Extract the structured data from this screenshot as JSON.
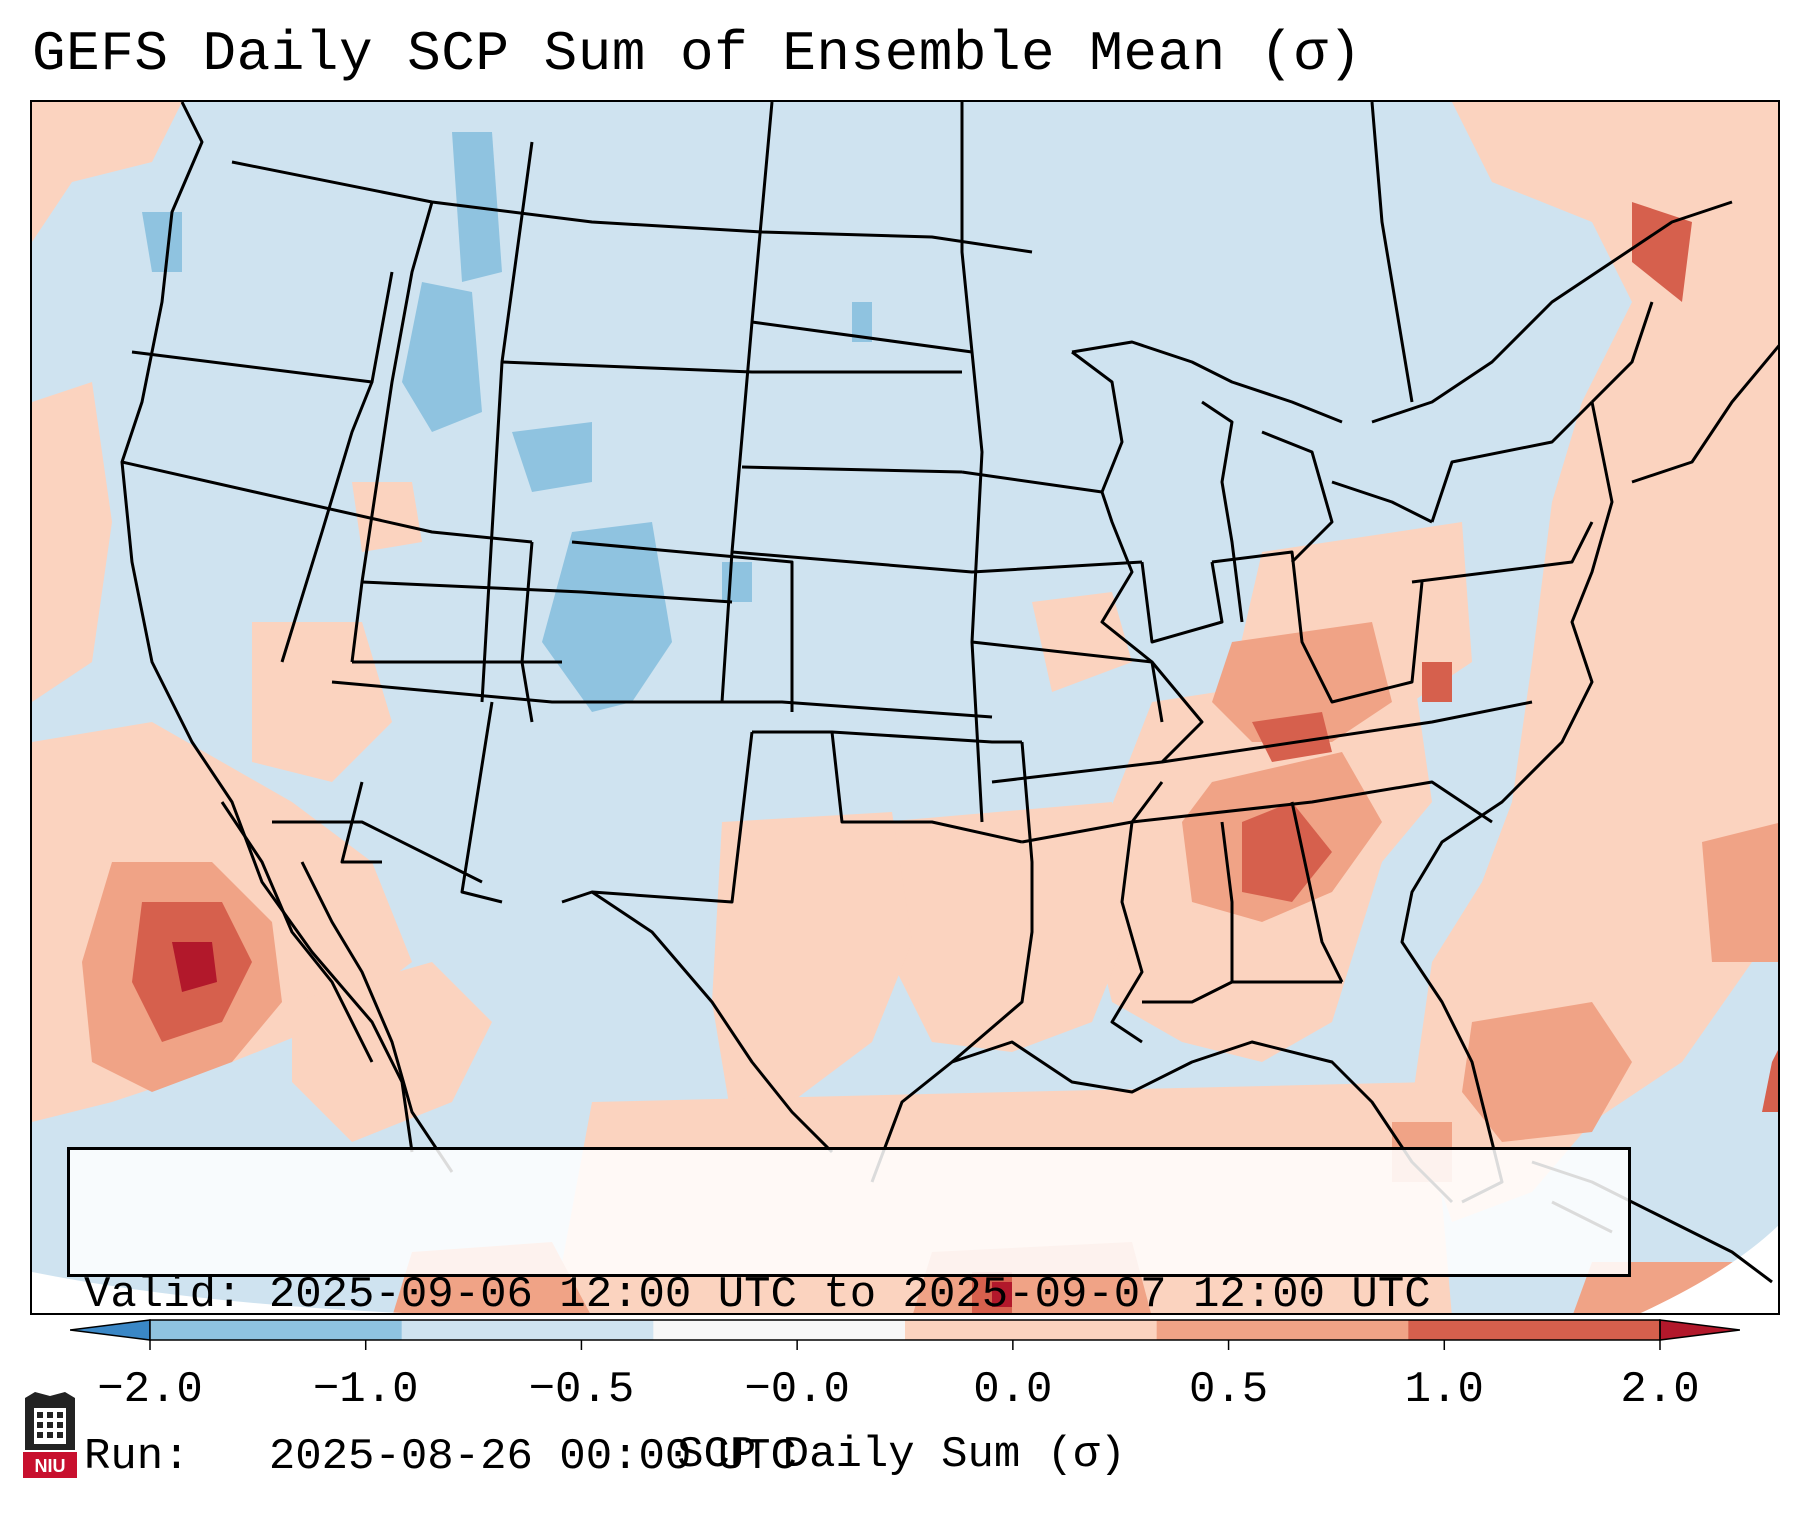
{
  "title": "GEFS Daily SCP Sum of Ensemble Mean (σ)",
  "info_box": {
    "valid_label": "Valid:",
    "valid_value": "2025-09-06 12:00 UTC to 2025-09-07 12:00 UTC",
    "run_label": "Run:",
    "run_value": "2025-08-26 00:00 UTC"
  },
  "colorbar": {
    "label": "SCP Daily Sum (σ)",
    "ticks": [
      "−2.0",
      "−1.0",
      "−0.5",
      "−0.0",
      "0.0",
      "0.5",
      "1.0",
      "2.0"
    ],
    "colors": [
      "#3a87c6",
      "#8fc3e0",
      "#cfe3f0",
      "#f7f7f7",
      "#fbd3bf",
      "#f0a386",
      "#d6604d",
      "#b2182b"
    ]
  },
  "map_colors": {
    "background": "#cfe3f0",
    "light_red": "#fbd3bf",
    "mid_red": "#f0a386",
    "dark_red": "#d6604d",
    "deep_red": "#b2182b",
    "mid_blue": "#8fc3e0"
  },
  "logo": {
    "text": "NIU"
  }
}
